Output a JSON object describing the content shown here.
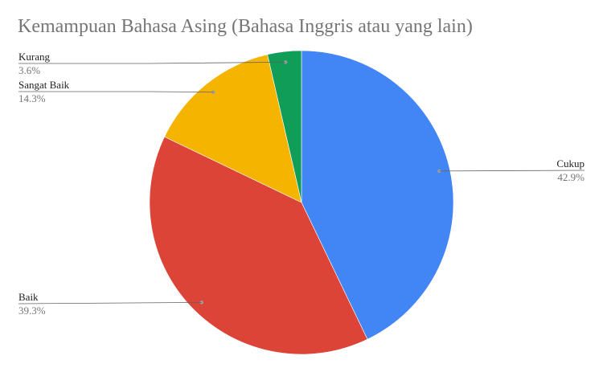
{
  "chart_data": {
    "type": "pie",
    "title": "Kemampuan Bahasa Asing (Bahasa Inggris atau yang lain)",
    "slices": [
      {
        "label": "Cukup",
        "value": 42.9,
        "percent_label": "42.9%",
        "color": "#4285f4"
      },
      {
        "label": "Baik",
        "value": 39.3,
        "percent_label": "39.3%",
        "color": "#db4437"
      },
      {
        "label": "Sangat Baik",
        "value": 14.3,
        "percent_label": "14.3%",
        "color": "#f4b400"
      },
      {
        "label": "Kurang",
        "value": 3.6,
        "percent_label": "3.6%",
        "color": "#0f9d58"
      }
    ],
    "legend": "none"
  }
}
